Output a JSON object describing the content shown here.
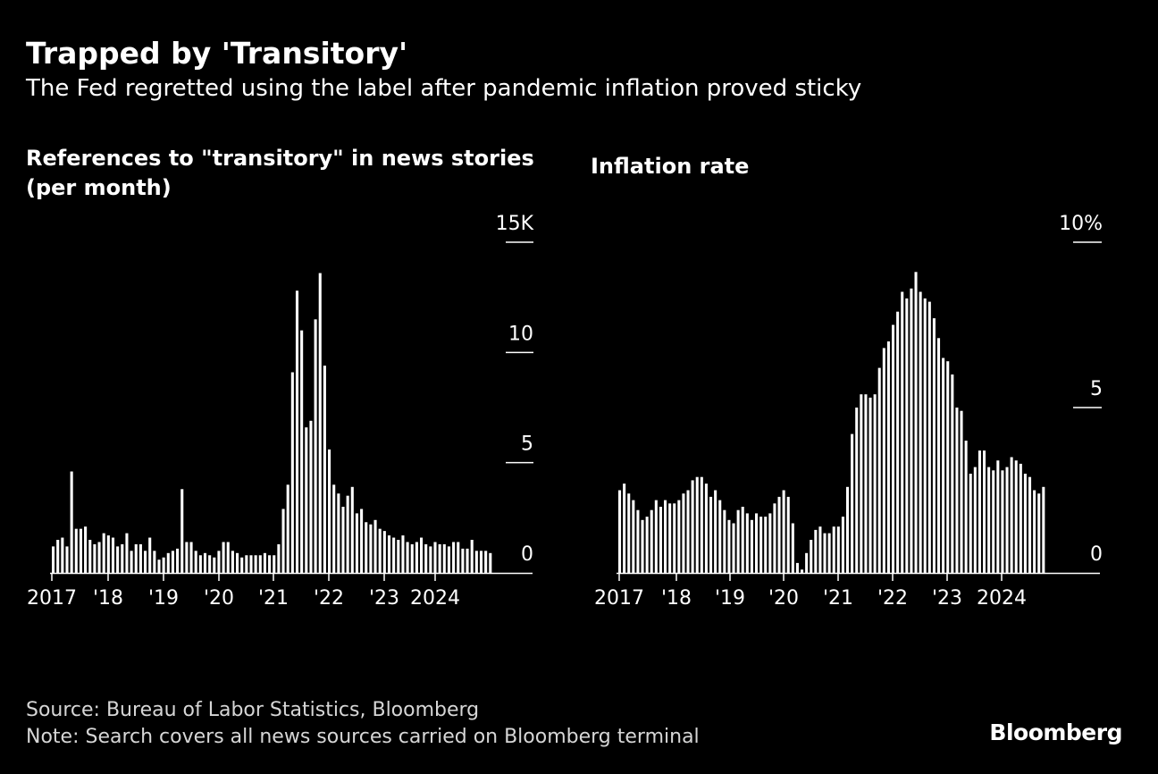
{
  "title": "Trapped by 'Transitory'",
  "subtitle": "The Fed regretted using the label after pandemic inflation proved sticky",
  "footer": {
    "source": "Source: Bureau of Labor Statistics, Bloomberg",
    "note": "Note: Search covers all news sources carried on Bloomberg terminal",
    "brand": "Bloomberg"
  },
  "colors": {
    "background": "#000000",
    "bars": "#ffffff",
    "text": "#ffffff"
  },
  "chart_data": [
    {
      "type": "bar",
      "title": "References to \"transitory\" in news stories (per month)",
      "xlabel": "",
      "ylabel": "",
      "x_start": "2017-01",
      "x_tick_labels": [
        "2017",
        "'18",
        "'19",
        "'20",
        "'21",
        "'22",
        "'23",
        "2024"
      ],
      "y_tick_labels": [
        "0",
        "5",
        "10",
        "15K"
      ],
      "y_ticks": [
        0,
        5,
        10,
        15
      ],
      "ylim": [
        0,
        15
      ],
      "grid": false,
      "values": [
        1.2,
        1.5,
        1.6,
        1.2,
        4.6,
        2.0,
        2.0,
        2.1,
        1.5,
        1.3,
        1.4,
        1.8,
        1.7,
        1.6,
        1.2,
        1.3,
        1.8,
        1.0,
        1.3,
        1.3,
        1.0,
        1.6,
        1.0,
        0.6,
        0.7,
        0.9,
        1.0,
        1.1,
        3.8,
        1.4,
        1.4,
        1.0,
        0.8,
        0.9,
        0.8,
        0.7,
        1.0,
        1.4,
        1.4,
        1.0,
        0.9,
        0.7,
        0.8,
        0.8,
        0.8,
        0.8,
        0.9,
        0.8,
        0.8,
        1.3,
        2.9,
        4.0,
        9.1,
        12.8,
        11.0,
        6.6,
        6.9,
        11.5,
        13.6,
        9.4,
        5.6,
        4.0,
        3.6,
        3.0,
        3.5,
        3.9,
        2.7,
        2.9,
        2.3,
        2.2,
        2.4,
        2.0,
        1.9,
        1.7,
        1.6,
        1.5,
        1.7,
        1.4,
        1.3,
        1.4,
        1.6,
        1.3,
        1.2,
        1.4,
        1.3,
        1.3,
        1.2,
        1.4,
        1.4,
        1.1,
        1.1,
        1.5,
        1.0,
        1.0,
        1.0,
        0.9
      ]
    },
    {
      "type": "bar",
      "title": "Inflation rate",
      "xlabel": "",
      "ylabel": "",
      "x_start": "2017-01",
      "x_tick_labels": [
        "2017",
        "'18",
        "'19",
        "'20",
        "'21",
        "'22",
        "'23",
        "2024"
      ],
      "y_tick_labels": [
        "0",
        "5",
        "10%"
      ],
      "y_ticks": [
        0,
        5,
        10
      ],
      "ylim": [
        0,
        10
      ],
      "grid": false,
      "values": [
        2.5,
        2.7,
        2.4,
        2.2,
        1.9,
        1.6,
        1.7,
        1.9,
        2.2,
        2.0,
        2.2,
        2.1,
        2.1,
        2.2,
        2.4,
        2.5,
        2.8,
        2.9,
        2.9,
        2.7,
        2.3,
        2.5,
        2.2,
        1.9,
        1.6,
        1.5,
        1.9,
        2.0,
        1.8,
        1.6,
        1.8,
        1.7,
        1.7,
        1.8,
        2.1,
        2.3,
        2.5,
        2.3,
        1.5,
        0.3,
        0.1,
        0.6,
        1.0,
        1.3,
        1.4,
        1.2,
        1.2,
        1.4,
        1.4,
        1.7,
        2.6,
        4.2,
        5.0,
        5.4,
        5.4,
        5.3,
        5.4,
        6.2,
        6.8,
        7.0,
        7.5,
        7.9,
        8.5,
        8.3,
        8.6,
        9.1,
        8.5,
        8.3,
        8.2,
        7.7,
        7.1,
        6.5,
        6.4,
        6.0,
        5.0,
        4.9,
        4.0,
        3.0,
        3.2,
        3.7,
        3.7,
        3.2,
        3.1,
        3.4,
        3.1,
        3.2,
        3.5,
        3.4,
        3.3,
        3.0,
        2.9,
        2.5,
        2.4,
        2.6
      ]
    }
  ]
}
